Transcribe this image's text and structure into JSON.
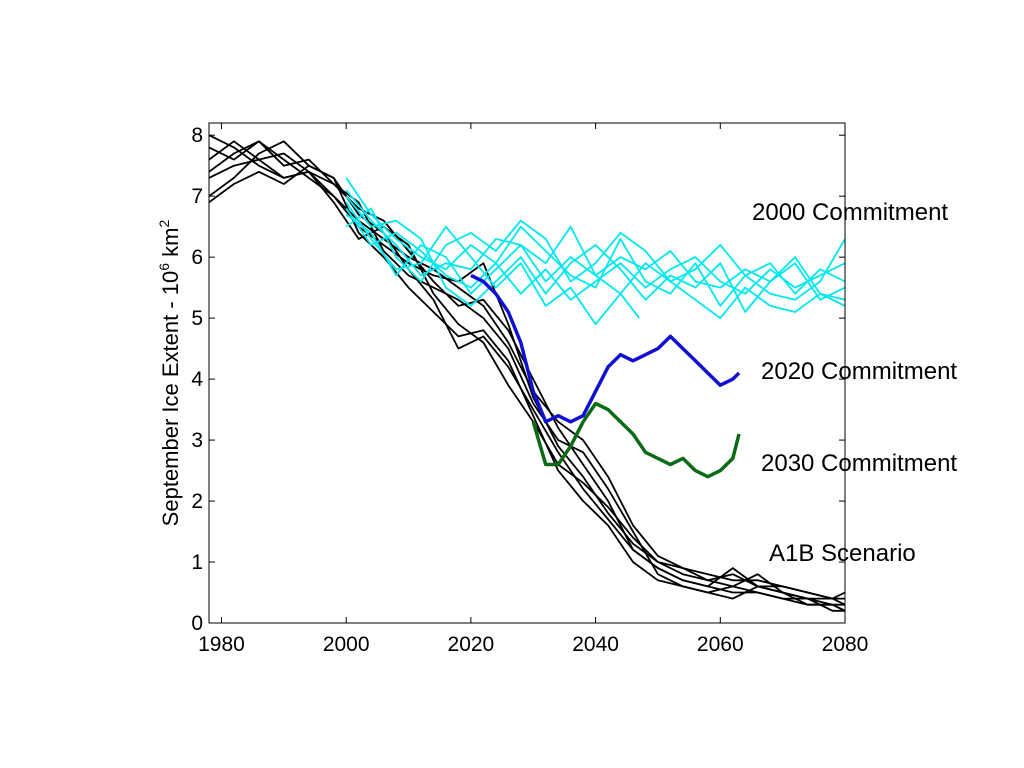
{
  "chart_data": {
    "type": "line",
    "ylabel": {
      "prefix": "September Ice Extent - 10",
      "sup1": "6",
      "unit": " km",
      "sup2": "2"
    },
    "xlim": [
      1978,
      2080
    ],
    "ylim": [
      0,
      8.2
    ],
    "xticks": [
      "1980",
      "2000",
      "2020",
      "2040",
      "2060",
      "2080"
    ],
    "yticks": [
      "0",
      "1",
      "2",
      "3",
      "4",
      "5",
      "6",
      "7",
      "8"
    ],
    "grid": false,
    "annotations": [
      {
        "text": "2000 Commitment",
        "color": "#00e8ee"
      },
      {
        "text": "2020 Commitment",
        "color": "#1010d0"
      },
      {
        "text": "2030 Commitment",
        "color": "#0a6b14"
      },
      {
        "text": "A1B Scenario",
        "color": "#000000"
      }
    ],
    "series": [
      {
        "group": "A1B",
        "color": "#000000",
        "x": [
          1978,
          1982,
          1986,
          1990,
          1994,
          1998,
          2002,
          2006,
          2010,
          2014,
          2018,
          2022,
          2026,
          2030,
          2034,
          2038,
          2042,
          2046,
          2050,
          2054,
          2058,
          2062,
          2066,
          2070,
          2074,
          2078,
          2080
        ],
        "y": [
          8.0,
          7.8,
          7.5,
          7.3,
          7.4,
          7.0,
          6.5,
          6.2,
          5.9,
          5.7,
          5.6,
          5.9,
          4.9,
          3.7,
          2.9,
          2.4,
          1.8,
          1.3,
          1.0,
          0.9,
          0.8,
          0.7,
          0.7,
          0.6,
          0.5,
          0.4,
          0.3
        ]
      },
      {
        "group": "A1B",
        "color": "#000000",
        "x": [
          1978,
          1982,
          1986,
          1990,
          1994,
          1998,
          2002,
          2006,
          2010,
          2014,
          2018,
          2022,
          2026,
          2030,
          2034,
          2038,
          2042,
          2046,
          2050,
          2054,
          2058,
          2062,
          2066,
          2070,
          2074,
          2078,
          2080
        ],
        "y": [
          7.4,
          7.7,
          7.9,
          7.5,
          7.6,
          7.2,
          6.8,
          6.6,
          6.1,
          5.6,
          5.2,
          5.3,
          4.8,
          4.0,
          3.2,
          2.6,
          2.0,
          1.2,
          0.9,
          0.7,
          0.6,
          0.9,
          0.6,
          0.5,
          0.4,
          0.3,
          0.2
        ]
      },
      {
        "group": "A1B",
        "color": "#000000",
        "x": [
          1978,
          1982,
          1986,
          1990,
          1994,
          1998,
          2002,
          2006,
          2010,
          2014,
          2018,
          2022,
          2026,
          2030,
          2034,
          2038,
          2042,
          2046,
          2050,
          2054,
          2058,
          2062,
          2066,
          2070,
          2074,
          2078,
          2080
        ],
        "y": [
          7.0,
          7.3,
          7.7,
          7.9,
          7.5,
          7.3,
          6.4,
          6.0,
          5.5,
          5.1,
          4.7,
          4.8,
          4.3,
          3.4,
          2.5,
          2.0,
          1.6,
          1.0,
          0.7,
          0.6,
          0.5,
          0.6,
          0.5,
          0.4,
          0.3,
          0.3,
          0.3
        ]
      },
      {
        "group": "A1B",
        "color": "#000000",
        "x": [
          1978,
          1982,
          1986,
          1990,
          1994,
          1998,
          2002,
          2006,
          2010,
          2014,
          2018,
          2022,
          2026,
          2030,
          2034,
          2038,
          2042,
          2046,
          2050,
          2054,
          2058,
          2062,
          2066,
          2070,
          2074,
          2078,
          2080
        ],
        "y": [
          6.9,
          7.2,
          7.4,
          7.2,
          7.5,
          7.3,
          6.7,
          6.4,
          5.8,
          5.3,
          4.5,
          4.7,
          4.2,
          3.5,
          2.8,
          2.2,
          1.7,
          1.2,
          0.9,
          0.7,
          0.6,
          0.5,
          0.5,
          0.4,
          0.4,
          0.2,
          0.2
        ]
      },
      {
        "group": "A1B",
        "color": "#000000",
        "x": [
          1978,
          1982,
          1986,
          1990,
          1994,
          1998,
          2002,
          2006,
          2010,
          2014,
          2018,
          2022,
          2026,
          2030,
          2034,
          2038,
          2042,
          2046,
          2050,
          2054,
          2058,
          2062,
          2066,
          2070,
          2074,
          2078,
          2080
        ],
        "y": [
          7.6,
          7.9,
          7.6,
          7.3,
          7.4,
          6.9,
          6.3,
          6.5,
          6.2,
          5.4,
          4.9,
          4.6,
          3.9,
          3.3,
          2.6,
          2.3,
          1.9,
          1.4,
          1.0,
          0.8,
          0.7,
          0.8,
          0.6,
          0.5,
          0.4,
          0.4,
          0.4
        ]
      },
      {
        "group": "A1B",
        "color": "#000000",
        "x": [
          1978,
          1982,
          1986,
          1990,
          1994,
          1998,
          2002,
          2006,
          2010,
          2014,
          2018,
          2022,
          2026,
          2030,
          2034,
          2038,
          2042,
          2046,
          2050,
          2054,
          2058,
          2062,
          2066,
          2070,
          2074,
          2078,
          2080
        ],
        "y": [
          7.8,
          7.6,
          7.9,
          7.6,
          7.3,
          7.0,
          6.6,
          6.3,
          6.0,
          5.8,
          5.5,
          5.2,
          4.6,
          3.8,
          3.3,
          3.0,
          2.4,
          1.6,
          1.1,
          0.9,
          0.7,
          0.6,
          0.8,
          0.5,
          0.3,
          0.3,
          0.2
        ]
      },
      {
        "group": "A1B",
        "color": "#000000",
        "x": [
          1978,
          1982,
          1986,
          1990,
          1994,
          1998,
          2002,
          2006,
          2010,
          2014,
          2018,
          2022,
          2026,
          2030,
          2034,
          2038,
          2042,
          2046,
          2050,
          2054,
          2058,
          2062,
          2066,
          2070,
          2074,
          2078,
          2080
        ],
        "y": [
          7.3,
          7.5,
          7.6,
          7.7,
          7.4,
          7.2,
          6.9,
          6.1,
          5.7,
          5.5,
          5.3,
          5.0,
          4.5,
          3.6,
          3.0,
          2.8,
          2.2,
          1.5,
          0.8,
          0.6,
          0.5,
          0.4,
          0.6,
          0.6,
          0.5,
          0.4,
          0.5
        ]
      },
      {
        "group": "2000",
        "color": "#00e8ee",
        "x": [
          2000,
          2004,
          2008,
          2012,
          2016,
          2020,
          2024,
          2028,
          2032,
          2036,
          2040,
          2044,
          2048,
          2052,
          2056,
          2060,
          2064,
          2068,
          2072,
          2076,
          2080
        ],
        "y": [
          7.3,
          6.7,
          6.3,
          6.0,
          5.8,
          6.2,
          5.9,
          6.5,
          6.1,
          5.7,
          5.5,
          6.3,
          5.6,
          5.4,
          5.9,
          5.2,
          5.7,
          5.4,
          5.3,
          5.6,
          6.3
        ]
      },
      {
        "group": "2000",
        "color": "#00e8ee",
        "x": [
          2000,
          2004,
          2008,
          2012,
          2016,
          2020,
          2024,
          2028,
          2032,
          2036,
          2040,
          2044,
          2048,
          2052,
          2056,
          2060,
          2064,
          2068,
          2072,
          2076,
          2080
        ],
        "y": [
          7.0,
          6.5,
          6.6,
          6.3,
          5.5,
          5.2,
          5.6,
          6.0,
          5.4,
          5.9,
          6.2,
          5.8,
          5.3,
          5.7,
          5.5,
          5.9,
          5.1,
          5.6,
          6.0,
          5.4,
          5.3
        ]
      },
      {
        "group": "2000",
        "color": "#00e8ee",
        "x": [
          2000,
          2004,
          2008,
          2012,
          2016,
          2020,
          2024,
          2028,
          2032,
          2036,
          2040,
          2044,
          2048,
          2052,
          2056,
          2060,
          2064,
          2068,
          2072,
          2076,
          2080
        ],
        "y": [
          6.8,
          6.2,
          6.4,
          6.1,
          5.7,
          5.5,
          5.9,
          5.4,
          5.8,
          5.3,
          5.6,
          5.9,
          5.5,
          5.8,
          6.0,
          5.6,
          5.4,
          5.8,
          5.5,
          5.7,
          5.9
        ]
      },
      {
        "group": "2000",
        "color": "#00e8ee",
        "x": [
          2000,
          2004,
          2008,
          2012,
          2016,
          2020,
          2024,
          2028,
          2032,
          2036,
          2040,
          2044,
          2048,
          2052,
          2056,
          2060,
          2064,
          2068,
          2072,
          2076,
          2080
        ],
        "y": [
          6.5,
          6.8,
          6.0,
          5.6,
          6.2,
          6.4,
          6.1,
          6.6,
          6.3,
          5.6,
          5.9,
          6.4,
          6.1,
          5.6,
          5.8,
          6.2,
          5.7,
          5.9,
          5.4,
          5.8,
          5.6
        ]
      },
      {
        "group": "2000",
        "color": "#00e8ee",
        "x": [
          2000,
          2004,
          2008,
          2012,
          2016,
          2020,
          2024,
          2028,
          2032,
          2036,
          2040,
          2044,
          2048,
          2052,
          2056,
          2060,
          2064,
          2068,
          2072,
          2076,
          2080
        ],
        "y": [
          6.9,
          6.3,
          5.8,
          5.9,
          6.5,
          6.0,
          5.5,
          5.9,
          5.2,
          5.5,
          4.9,
          5.4,
          5.9,
          5.6,
          5.3,
          5.0,
          5.5,
          5.2,
          5.1,
          5.4,
          5.2
        ]
      },
      {
        "group": "2000",
        "color": "#00e8ee",
        "x": [
          2000,
          2004,
          2008,
          2012,
          2016,
          2020,
          2024,
          2028,
          2032,
          2036,
          2040,
          2044,
          2048,
          2052,
          2056,
          2060,
          2064,
          2068,
          2072,
          2076,
          2080
        ],
        "y": [
          7.1,
          6.6,
          6.2,
          5.7,
          5.9,
          5.8,
          6.3,
          6.2,
          5.6,
          6.0,
          5.7,
          6.0,
          5.8,
          6.1,
          5.6,
          5.5,
          5.8,
          5.6,
          5.9,
          5.3,
          5.5
        ]
      },
      {
        "group": "2000",
        "color": "#00e8ee",
        "x": [
          2000,
          2004,
          2008,
          2012,
          2016,
          2020,
          2024,
          2028,
          2032,
          2036,
          2040,
          2044,
          2047
        ],
        "y": [
          6.7,
          6.4,
          5.7,
          6.2,
          6.0,
          5.4,
          5.8,
          6.2,
          5.9,
          6.5,
          5.7,
          5.4,
          5.0
        ]
      },
      {
        "group": "2020",
        "color": "#1010d0",
        "width": 3.5,
        "x": [
          2020,
          2022,
          2024,
          2026,
          2028,
          2030,
          2032,
          2034,
          2036,
          2038,
          2040,
          2042,
          2044,
          2046,
          2048,
          2050,
          2052,
          2054,
          2056,
          2058,
          2060,
          2062,
          2063
        ],
        "y": [
          5.7,
          5.6,
          5.4,
          5.1,
          4.6,
          3.8,
          3.3,
          3.4,
          3.3,
          3.4,
          3.8,
          4.2,
          4.4,
          4.3,
          4.4,
          4.5,
          4.7,
          4.5,
          4.3,
          4.1,
          3.9,
          4.0,
          4.1
        ]
      },
      {
        "group": "2030",
        "color": "#0a6b14",
        "width": 3.5,
        "x": [
          2030,
          2032,
          2034,
          2036,
          2038,
          2040,
          2042,
          2044,
          2046,
          2048,
          2050,
          2052,
          2054,
          2056,
          2058,
          2060,
          2062,
          2063
        ],
        "y": [
          3.3,
          2.6,
          2.6,
          2.9,
          3.3,
          3.6,
          3.5,
          3.3,
          3.1,
          2.8,
          2.7,
          2.6,
          2.7,
          2.5,
          2.4,
          2.5,
          2.7,
          3.1
        ]
      }
    ]
  }
}
